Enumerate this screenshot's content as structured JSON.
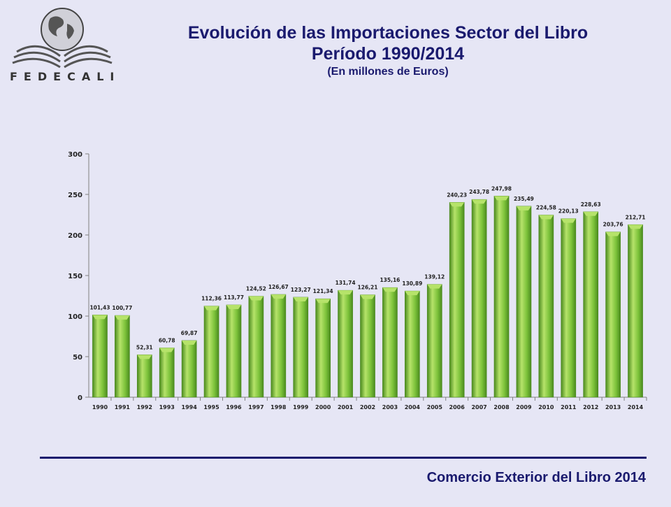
{
  "header": {
    "logo_text": "FEDECALI",
    "title_line1": "Evolución de las Importaciones Sector del Libro",
    "title_line2": "Período 1990/2014",
    "subtitle": "(En millones de Euros)"
  },
  "footer": {
    "text": "Comercio Exterior del Libro 2014"
  },
  "colors": {
    "title": "#1a1a6e",
    "bar_light": "#b6e36a",
    "bar_mid": "#7cc23a",
    "bar_dark": "#4a8a1e",
    "axis": "#808080"
  },
  "chart_data": {
    "type": "bar",
    "categories": [
      "1990",
      "1991",
      "1992",
      "1993",
      "1994",
      "1995",
      "1996",
      "1997",
      "1998",
      "1999",
      "2000",
      "2001",
      "2002",
      "2003",
      "2004",
      "2005",
      "2006",
      "2007",
      "2008",
      "2009",
      "2010",
      "2011",
      "2012",
      "2013",
      "2014"
    ],
    "values": [
      101.43,
      100.77,
      52.31,
      60.78,
      69.87,
      112.36,
      113.77,
      124.52,
      126.67,
      123.27,
      121.34,
      131.74,
      126.21,
      135.16,
      130.89,
      139.12,
      240.23,
      243.78,
      247.98,
      235.49,
      224.58,
      220.13,
      228.63,
      203.76,
      212.71
    ],
    "data_labels": [
      "101,43",
      "100,77",
      "52,31",
      "60,78",
      "69,87",
      "112,36",
      "113,77",
      "124,52",
      "126,67",
      "123,27",
      "121,34",
      "131,74",
      "126,21",
      "135,16",
      "130,89",
      "139,12",
      "240,23",
      "243,78",
      "247,98",
      "235,49",
      "224,58",
      "220,13",
      "228,63",
      "203,76",
      "212,71"
    ],
    "yticks": [
      0,
      50,
      100,
      150,
      200,
      250,
      300
    ],
    "ylim": [
      0,
      300
    ],
    "grid": false,
    "legend": "none"
  }
}
